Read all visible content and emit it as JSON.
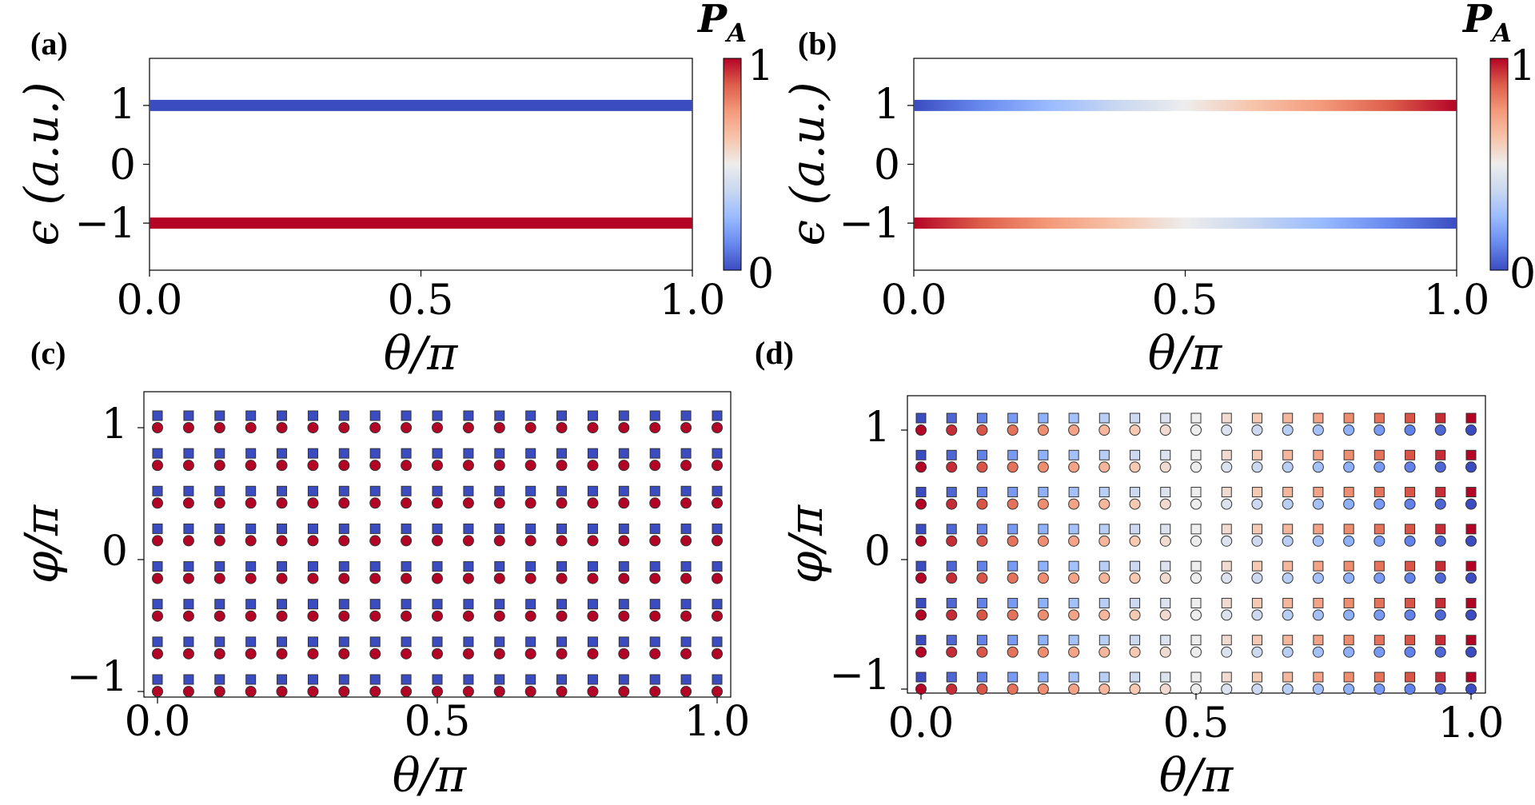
{
  "colorbar": {
    "title": "P_A",
    "title_main": "P",
    "title_sub": "A",
    "min_label": "0",
    "max_label": "1"
  },
  "colormap": [
    "#3b4cc0",
    "#6889ee",
    "#9abbff",
    "#c9d7f0",
    "#ededed",
    "#f7c4ab",
    "#f49a7b",
    "#dd5f4b",
    "#b40426"
  ],
  "chart_data": [
    {
      "panel": "(a)",
      "type": "line",
      "xlabel": "θ/π",
      "ylabel": "ϵ (a.u.)",
      "xlim": [
        0,
        1
      ],
      "ylim": [
        -1.8,
        1.8
      ],
      "xticks": [
        "0.0",
        "0.5",
        "1.0"
      ],
      "yticks": [
        "−1",
        "0",
        "1"
      ],
      "x": [
        0,
        0.125,
        0.25,
        0.375,
        0.5,
        0.625,
        0.75,
        0.875,
        1
      ],
      "series": [
        {
          "y": 1,
          "PA": [
            0,
            0,
            0,
            0,
            0,
            0,
            0,
            0,
            0
          ]
        },
        {
          "y": -1,
          "PA": [
            1,
            1,
            1,
            1,
            1,
            1,
            1,
            1,
            1
          ]
        }
      ]
    },
    {
      "panel": "(b)",
      "type": "line",
      "xlabel": "θ/π",
      "ylabel": "ϵ (a.u.)",
      "xlim": [
        0,
        1
      ],
      "ylim": [
        -1.8,
        1.8
      ],
      "xticks": [
        "0.0",
        "0.5",
        "1.0"
      ],
      "yticks": [
        "−1",
        "0",
        "1"
      ],
      "x": [
        0,
        0.125,
        0.25,
        0.375,
        0.5,
        0.625,
        0.75,
        0.875,
        1
      ],
      "series": [
        {
          "y": 1,
          "PA": [
            0,
            0.125,
            0.25,
            0.375,
            0.5,
            0.625,
            0.75,
            0.875,
            1
          ]
        },
        {
          "y": -1,
          "PA": [
            1,
            0.875,
            0.75,
            0.625,
            0.5,
            0.375,
            0.25,
            0.125,
            0
          ]
        }
      ]
    },
    {
      "panel": "(c)",
      "type": "scatter",
      "xlabel": "θ/π",
      "ylabel": "φ/π",
      "xlim": [
        -0.025,
        1.025
      ],
      "ylim": [
        -1.1,
        1.22
      ],
      "xticks": [
        "0.0",
        "0.5",
        "1.0"
      ],
      "yticks": [
        "−1",
        "0",
        "1"
      ],
      "theta": [
        0,
        0.0556,
        0.1111,
        0.1667,
        0.2222,
        0.2778,
        0.3333,
        0.3889,
        0.4444,
        0.5,
        0.5556,
        0.6111,
        0.6667,
        0.7222,
        0.7778,
        0.8333,
        0.8889,
        0.9444,
        1
      ],
      "phi": [
        -1,
        -0.7143,
        -0.4286,
        -0.1429,
        0.1429,
        0.4286,
        0.7143,
        1
      ],
      "square_PA": "0",
      "circle_PA": "1"
    },
    {
      "panel": "(d)",
      "type": "scatter",
      "xlabel": "θ/π",
      "ylabel": "φ/π",
      "xlim": [
        -0.025,
        1.025
      ],
      "ylim": [
        -1.1,
        1.22
      ],
      "xticks": [
        "0.0",
        "0.5",
        "1.0"
      ],
      "yticks": [
        "−1",
        "0",
        "1"
      ],
      "theta": [
        0,
        0.0556,
        0.1111,
        0.1667,
        0.2222,
        0.2778,
        0.3333,
        0.3889,
        0.4444,
        0.5,
        0.5556,
        0.6111,
        0.6667,
        0.7222,
        0.7778,
        0.8333,
        0.8889,
        0.9444,
        1
      ],
      "phi": [
        -1,
        -0.7143,
        -0.4286,
        -0.1429,
        0.1429,
        0.4286,
        0.7143,
        1
      ],
      "square_PA": "θ/π",
      "circle_PA": "1 − θ/π"
    }
  ]
}
